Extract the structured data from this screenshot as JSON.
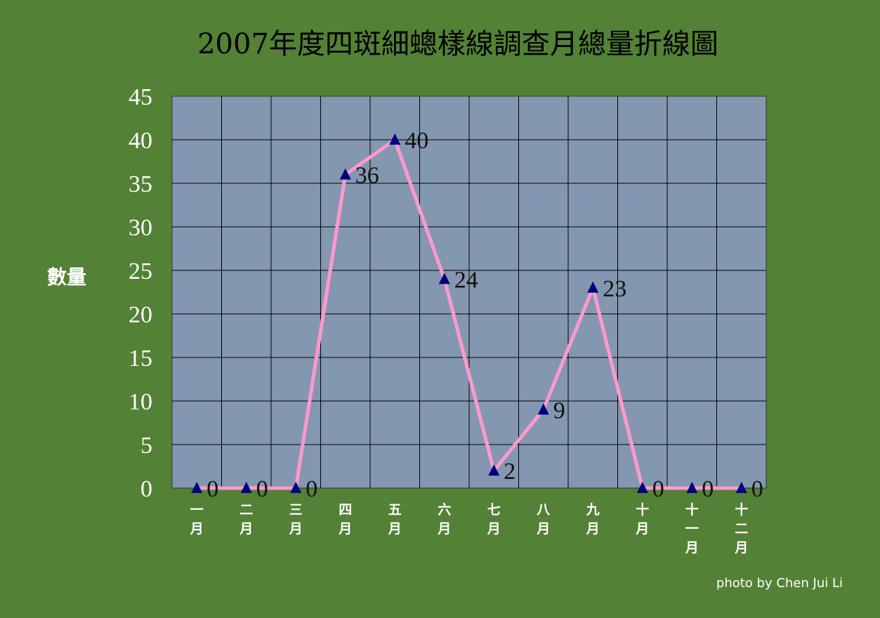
{
  "chart_data": {
    "type": "line",
    "title": "2007年度四斑細蟌樣線調查月總量折線圖",
    "ylabel": "數量",
    "xlabel": "",
    "categories": [
      [
        "一",
        "月"
      ],
      [
        "二",
        "月"
      ],
      [
        "三",
        "月"
      ],
      [
        "四",
        "月"
      ],
      [
        "五",
        "月"
      ],
      [
        "六",
        "月"
      ],
      [
        "七",
        "月"
      ],
      [
        "八",
        "月"
      ],
      [
        "九",
        "月"
      ],
      [
        "十",
        "月"
      ],
      [
        "十",
        "一",
        "月"
      ],
      [
        "十",
        "二",
        "月"
      ]
    ],
    "values": [
      0,
      0,
      0,
      36,
      40,
      24,
      2,
      9,
      23,
      0,
      0,
      0
    ],
    "ylim": [
      0,
      45
    ],
    "yticks": [
      0,
      5,
      10,
      15,
      20,
      25,
      30,
      35,
      40,
      45
    ],
    "grid": true,
    "legend": "none",
    "colors": {
      "background": "#538135",
      "plot_area": "#8497b0",
      "grid": "#000000",
      "line": "#ff99cc",
      "marker": "#000080"
    }
  },
  "credit": "photo by Chen Jui Li"
}
